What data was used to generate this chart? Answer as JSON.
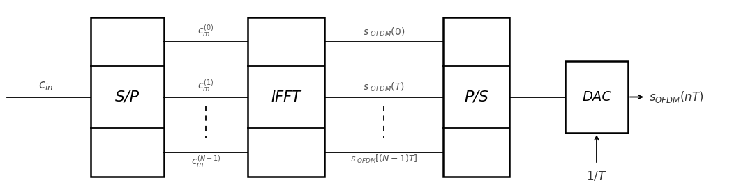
{
  "fig_width": 10.49,
  "fig_height": 2.79,
  "dpi": 100,
  "background_color": "#ffffff",
  "sp_label": "S/P",
  "ifft_label": "IFFT",
  "ps_label": "P/S",
  "dac_label": "DAC",
  "cin_label": "$c_{in}$",
  "sofdm_out_label": "$s_{OFDM}(nT)$",
  "freq_label": "$1/T$",
  "label_c0": "$c_m^{(0)}$",
  "label_c1": "$c_m^{(1)}$",
  "label_cN": "$c_m^{(N-1)}$",
  "label_s0": "$s_{\\ OFDM}(0)$",
  "label_sT": "$s_{\\ OFDM}(T)$",
  "label_sN": "$s_{\\ OFDM}[(N-1)T]$"
}
